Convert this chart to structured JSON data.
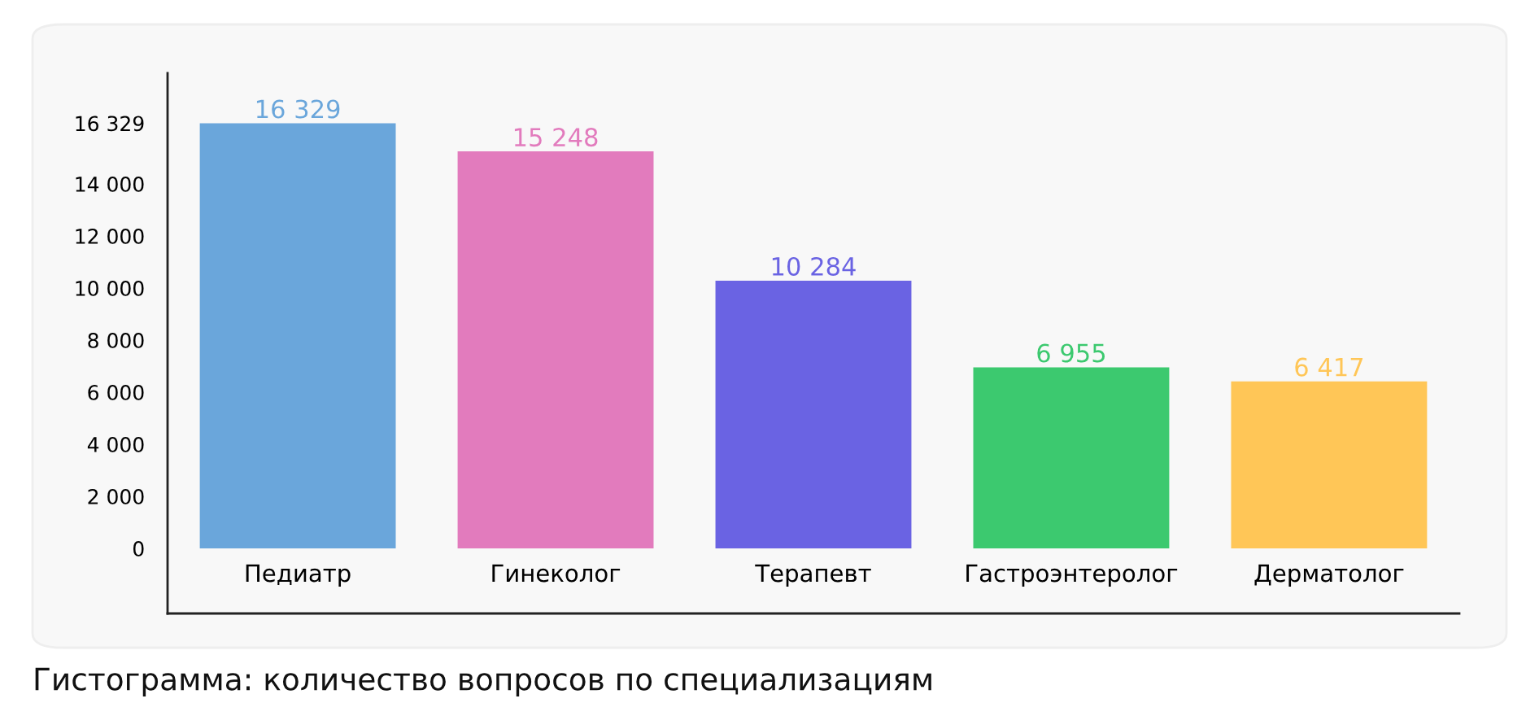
{
  "chart_data": {
    "type": "bar",
    "title": "Гистограмма: количество вопросов по специализациям",
    "categories": [
      "Педиатр",
      "Гинеколог",
      "Терапевт",
      "Гастроэнтеролог",
      "Дерматолог"
    ],
    "values": [
      16329,
      15248,
      10284,
      6955,
      6417
    ],
    "colors": [
      "#6aa6db",
      "#e27bbd",
      "#6a63e3",
      "#3cc96f",
      "#ffc657"
    ],
    "value_labels": [
      "16 329",
      "15 248",
      "10 284",
      "6 955",
      "6 417"
    ],
    "ylim": [
      -2500,
      18250
    ],
    "yticks": [
      0,
      {
        "value": 2000,
        "label": "2 000"
      },
      {
        "value": 4000,
        "label": "4 000"
      },
      {
        "value": 6000,
        "label": "6 000"
      },
      {
        "value": 8000,
        "label": "8 000"
      },
      {
        "value": 10000,
        "label": "10 000"
      },
      {
        "value": 12000,
        "label": "12 000"
      },
      {
        "value": 14000,
        "label": "14 000"
      },
      {
        "value": 16329,
        "label": "16 329"
      }
    ],
    "grid": false,
    "legend": false
  }
}
